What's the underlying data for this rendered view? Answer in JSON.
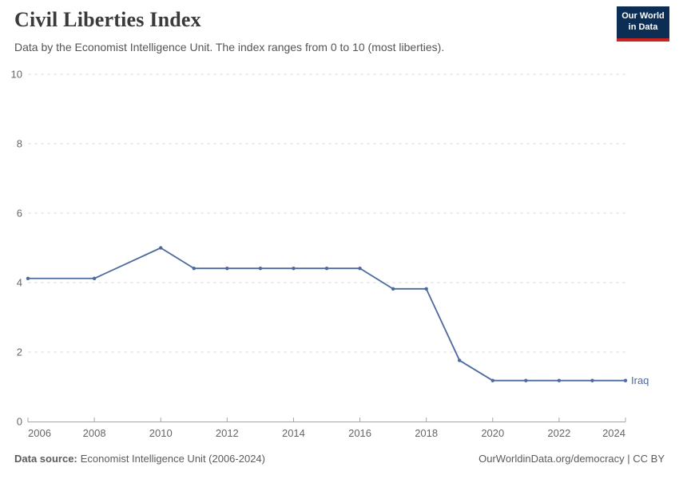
{
  "header": {
    "title": "Civil Liberties Index",
    "subtitle": "Data by the Economist Intelligence Unit. The index ranges from 0 to 10 (most liberties).",
    "logo_line1": "Our World",
    "logo_line2": "in Data"
  },
  "chart_data": {
    "type": "line",
    "title": "Civil Liberties Index",
    "subtitle": "Data by the Economist Intelligence Unit. The index ranges from 0 to 10 (most liberties).",
    "x": [
      2006,
      2008,
      2010,
      2011,
      2012,
      2013,
      2014,
      2015,
      2016,
      2017,
      2018,
      2019,
      2020,
      2021,
      2022,
      2023,
      2024
    ],
    "series": [
      {
        "name": "Iraq",
        "values": [
          4.12,
          4.12,
          5.0,
          4.41,
          4.41,
          4.41,
          4.41,
          4.41,
          4.41,
          3.82,
          3.82,
          1.76,
          1.18,
          1.18,
          1.18,
          1.18,
          1.18
        ],
        "color": "#4c6a9c"
      }
    ],
    "xlabel": "",
    "ylabel": "",
    "xlim": [
      2006,
      2024
    ],
    "ylim": [
      0,
      10
    ],
    "x_ticks": [
      2006,
      2008,
      2010,
      2012,
      2014,
      2016,
      2018,
      2020,
      2022,
      2024
    ],
    "y_ticks": [
      0,
      2,
      4,
      6,
      8,
      10
    ],
    "grid": "horizontal-dashed",
    "legend_position": "end-of-line-label"
  },
  "footer": {
    "data_source_label": "Data source:",
    "data_source_value": "Economist Intelligence Unit (2006-2024)",
    "attribution": "OurWorldinData.org/democracy | CC BY"
  },
  "colors": {
    "line": "#4c6a9c",
    "grid": "#dcdcdc",
    "axis": "#a5a5a5",
    "tick_label": "#666666",
    "logo_bg": "#0d2e54",
    "logo_accent": "#cd2220"
  }
}
